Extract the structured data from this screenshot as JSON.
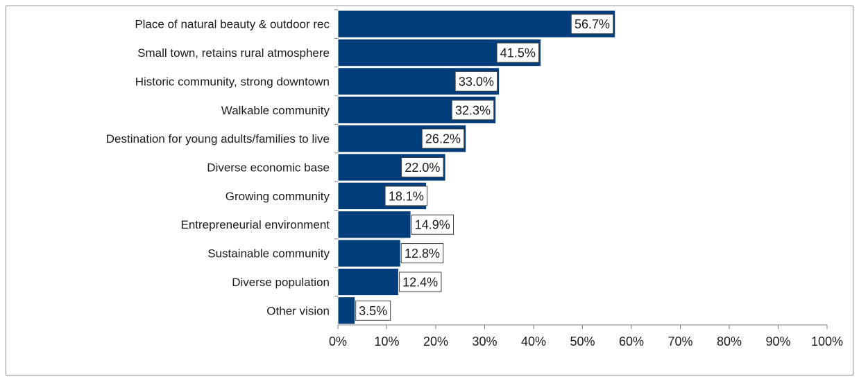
{
  "chart_data": {
    "type": "bar",
    "orientation": "horizontal",
    "categories": [
      "Place of natural beauty & outdoor rec",
      "Small town, retains rural atmosphere",
      "Historic community, strong downtown",
      "Walkable community",
      "Destination for young adults/families to live",
      "Diverse economic base",
      "Growing community",
      "Entrepreneurial environment",
      "Sustainable community",
      "Diverse population",
      "Other vision"
    ],
    "values": [
      56.7,
      41.5,
      33.0,
      32.3,
      26.2,
      22.0,
      18.1,
      14.9,
      12.8,
      12.4,
      3.5
    ],
    "data_labels": [
      "56.7%",
      "41.5%",
      "33.0%",
      "32.3%",
      "26.2%",
      "22.0%",
      "18.1%",
      "14.9%",
      "12.8%",
      "12.4%",
      "3.5%"
    ],
    "xlim": [
      0,
      100
    ],
    "x_ticks": [
      0,
      10,
      20,
      30,
      40,
      50,
      60,
      70,
      80,
      90,
      100
    ],
    "x_tick_labels": [
      "0%",
      "10%",
      "20%",
      "30%",
      "40%",
      "50%",
      "60%",
      "70%",
      "80%",
      "90%",
      "100%"
    ],
    "title": "",
    "xlabel": "",
    "ylabel": "",
    "grid": false,
    "legend": "none",
    "colors": {
      "bar": "#003d7a",
      "bar_edge": "#ffffff",
      "axis": "#7f7f7f",
      "label_box_edge": "#404040"
    }
  }
}
